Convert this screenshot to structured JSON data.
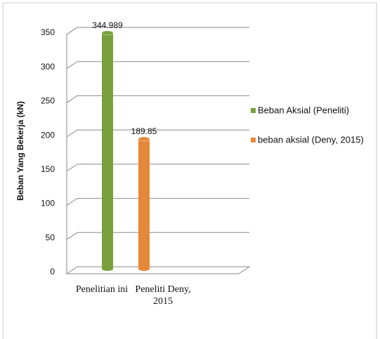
{
  "chart_data": {
    "type": "bar",
    "y_label": "Beban Yang Bekerja (kN)",
    "categories": [
      "Penelitian ini",
      "Peneliti Deny, 2015"
    ],
    "series": [
      {
        "name": "Beban Aksial (Peneliti)",
        "color": "#77a03c",
        "values": [
          344.989,
          null
        ]
      },
      {
        "name": "beban aksial (Deny, 2015)",
        "color": "#e6883a",
        "values": [
          null,
          189.85
        ]
      }
    ],
    "ylim": [
      0,
      350
    ],
    "yticks": [
      0,
      50,
      100,
      150,
      200,
      250,
      300,
      350
    ],
    "grid": true,
    "legend": "right"
  }
}
